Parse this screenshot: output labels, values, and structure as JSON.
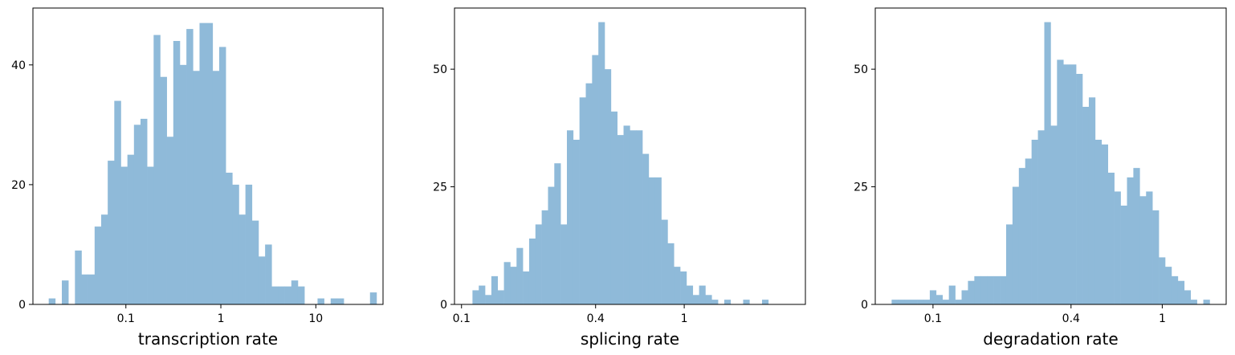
{
  "colors": {
    "bar": "#8fbad9",
    "frame": "#000000",
    "background": "#ffffff"
  },
  "chart_data": [
    {
      "type": "histogram",
      "xlabel": "transcription rate",
      "xscale": "log",
      "xlim": [
        0.0105,
        51.0
      ],
      "ylim": [
        0,
        49.5
      ],
      "xticks": [
        {
          "value": 0.1,
          "label": "0.1"
        },
        {
          "value": 1,
          "label": "1"
        },
        {
          "value": 10,
          "label": "10"
        }
      ],
      "yticks": [
        {
          "value": 0,
          "label": "0"
        },
        {
          "value": 20,
          "label": "20"
        },
        {
          "value": 40,
          "label": "40"
        }
      ],
      "bins": {
        "start": 0.0154,
        "end": 43.6,
        "count": 50
      },
      "counts": [
        1,
        0,
        4,
        0,
        9,
        5,
        5,
        13,
        15,
        24,
        34,
        23,
        25,
        30,
        31,
        23,
        45,
        38,
        28,
        44,
        40,
        46,
        39,
        47,
        47,
        39,
        43,
        22,
        20,
        15,
        20,
        14,
        8,
        10,
        3,
        3,
        3,
        4,
        3,
        0,
        0,
        1,
        0,
        1,
        1,
        0,
        0,
        0,
        0,
        2
      ]
    },
    {
      "type": "histogram",
      "xlabel": "splicing rate",
      "xscale": "log",
      "xlim": [
        0.093,
        3.5
      ],
      "ylim": [
        0,
        63
      ],
      "xticks": [
        {
          "value": 0.1,
          "label": "0.1"
        },
        {
          "value": 0.4,
          "label": "0.4"
        },
        {
          "value": 1,
          "label": "1"
        }
      ],
      "yticks": [
        {
          "value": 0,
          "label": "0"
        },
        {
          "value": 25,
          "label": "25"
        },
        {
          "value": 50,
          "label": "50"
        }
      ],
      "bins": {
        "start": 0.112,
        "end": 2.9,
        "count": 50
      },
      "counts": [
        3,
        4,
        2,
        6,
        3,
        9,
        8,
        12,
        7,
        14,
        17,
        20,
        25,
        30,
        17,
        37,
        35,
        44,
        47,
        53,
        60,
        50,
        41,
        36,
        38,
        37,
        37,
        32,
        27,
        27,
        18,
        13,
        8,
        7,
        4,
        2,
        4,
        2,
        1,
        0,
        1,
        0,
        0,
        1,
        0,
        0,
        1,
        0,
        0,
        0
      ]
    },
    {
      "type": "histogram",
      "xlabel": "degradation rate",
      "xscale": "log",
      "xlim": [
        0.056,
        1.9
      ],
      "ylim": [
        0,
        63
      ],
      "xticks": [
        {
          "value": 0.1,
          "label": "0.1"
        },
        {
          "value": 0.4,
          "label": "0.4"
        },
        {
          "value": 1,
          "label": "1"
        }
      ],
      "yticks": [
        {
          "value": 0,
          "label": "0"
        },
        {
          "value": 25,
          "label": "25"
        },
        {
          "value": 50,
          "label": "50"
        }
      ],
      "bins": {
        "start": 0.066,
        "end": 1.61,
        "count": 50
      },
      "counts": [
        1,
        1,
        1,
        1,
        1,
        1,
        3,
        2,
        1,
        4,
        1,
        3,
        5,
        6,
        6,
        6,
        6,
        6,
        17,
        25,
        29,
        31,
        35,
        37,
        60,
        38,
        52,
        51,
        51,
        49,
        42,
        44,
        35,
        34,
        28,
        24,
        21,
        27,
        29,
        23,
        24,
        20,
        10,
        8,
        6,
        5,
        3,
        1,
        0,
        1
      ]
    }
  ]
}
